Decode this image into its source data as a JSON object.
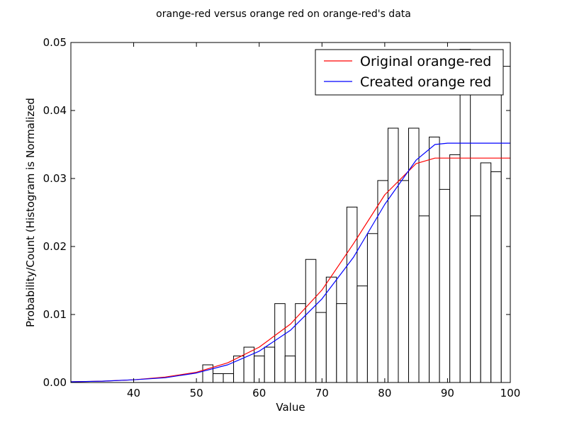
{
  "chart_data": {
    "type": "histogram-with-lines",
    "title": "orange-red versus orange red on orange-red's data",
    "xlabel": "Value",
    "ylabel": "Probability/Count (Histogram is Normalized",
    "xlim": [
      30,
      100
    ],
    "ylim": [
      0,
      0.05
    ],
    "xticks": [
      40,
      50,
      60,
      70,
      80,
      90,
      100
    ],
    "yticks": [
      0.0,
      0.01,
      0.02,
      0.03,
      0.04,
      0.05
    ],
    "xtick_labels": [
      "40",
      "50",
      "60",
      "70",
      "80",
      "90",
      "100"
    ],
    "ytick_labels": [
      "0.00",
      "0.01",
      "0.02",
      "0.03",
      "0.04",
      "0.05"
    ],
    "legend_position": "top-right",
    "histogram": {
      "bin_start": 51.0,
      "bin_width": 1.64,
      "counts": [
        0.0026,
        0.0013,
        0.0013,
        0.0039,
        0.0052,
        0.0039,
        0.0052,
        0.0116,
        0.0039,
        0.0116,
        0.0181,
        0.0103,
        0.0155,
        0.0116,
        0.0258,
        0.0142,
        0.0219,
        0.0297,
        0.0374,
        0.0297,
        0.0374,
        0.0245,
        0.0361,
        0.0284,
        0.0335,
        0.049,
        0.0245,
        0.0323,
        0.031,
        0.0465
      ]
    },
    "series": [
      {
        "name": "Original orange-red",
        "color": "#ff0000",
        "x": [
          30,
          35,
          40,
          45,
          50,
          55,
          60,
          65,
          70,
          75,
          80,
          85,
          88,
          90,
          95,
          100
        ],
        "y": [
          0.0001,
          0.0002,
          0.0004,
          0.0008,
          0.0015,
          0.0029,
          0.0052,
          0.0086,
          0.0136,
          0.0204,
          0.0276,
          0.0322,
          0.033,
          0.033,
          0.033,
          0.033
        ]
      },
      {
        "name": "Created orange red",
        "color": "#0000ff",
        "x": [
          30,
          35,
          40,
          45,
          50,
          55,
          60,
          65,
          70,
          75,
          80,
          85,
          88,
          90,
          95,
          100
        ],
        "y": [
          0.0001,
          0.0002,
          0.0004,
          0.0007,
          0.0014,
          0.0026,
          0.0046,
          0.0077,
          0.0123,
          0.0184,
          0.0262,
          0.0327,
          0.035,
          0.0352,
          0.0352,
          0.0352
        ]
      }
    ]
  }
}
